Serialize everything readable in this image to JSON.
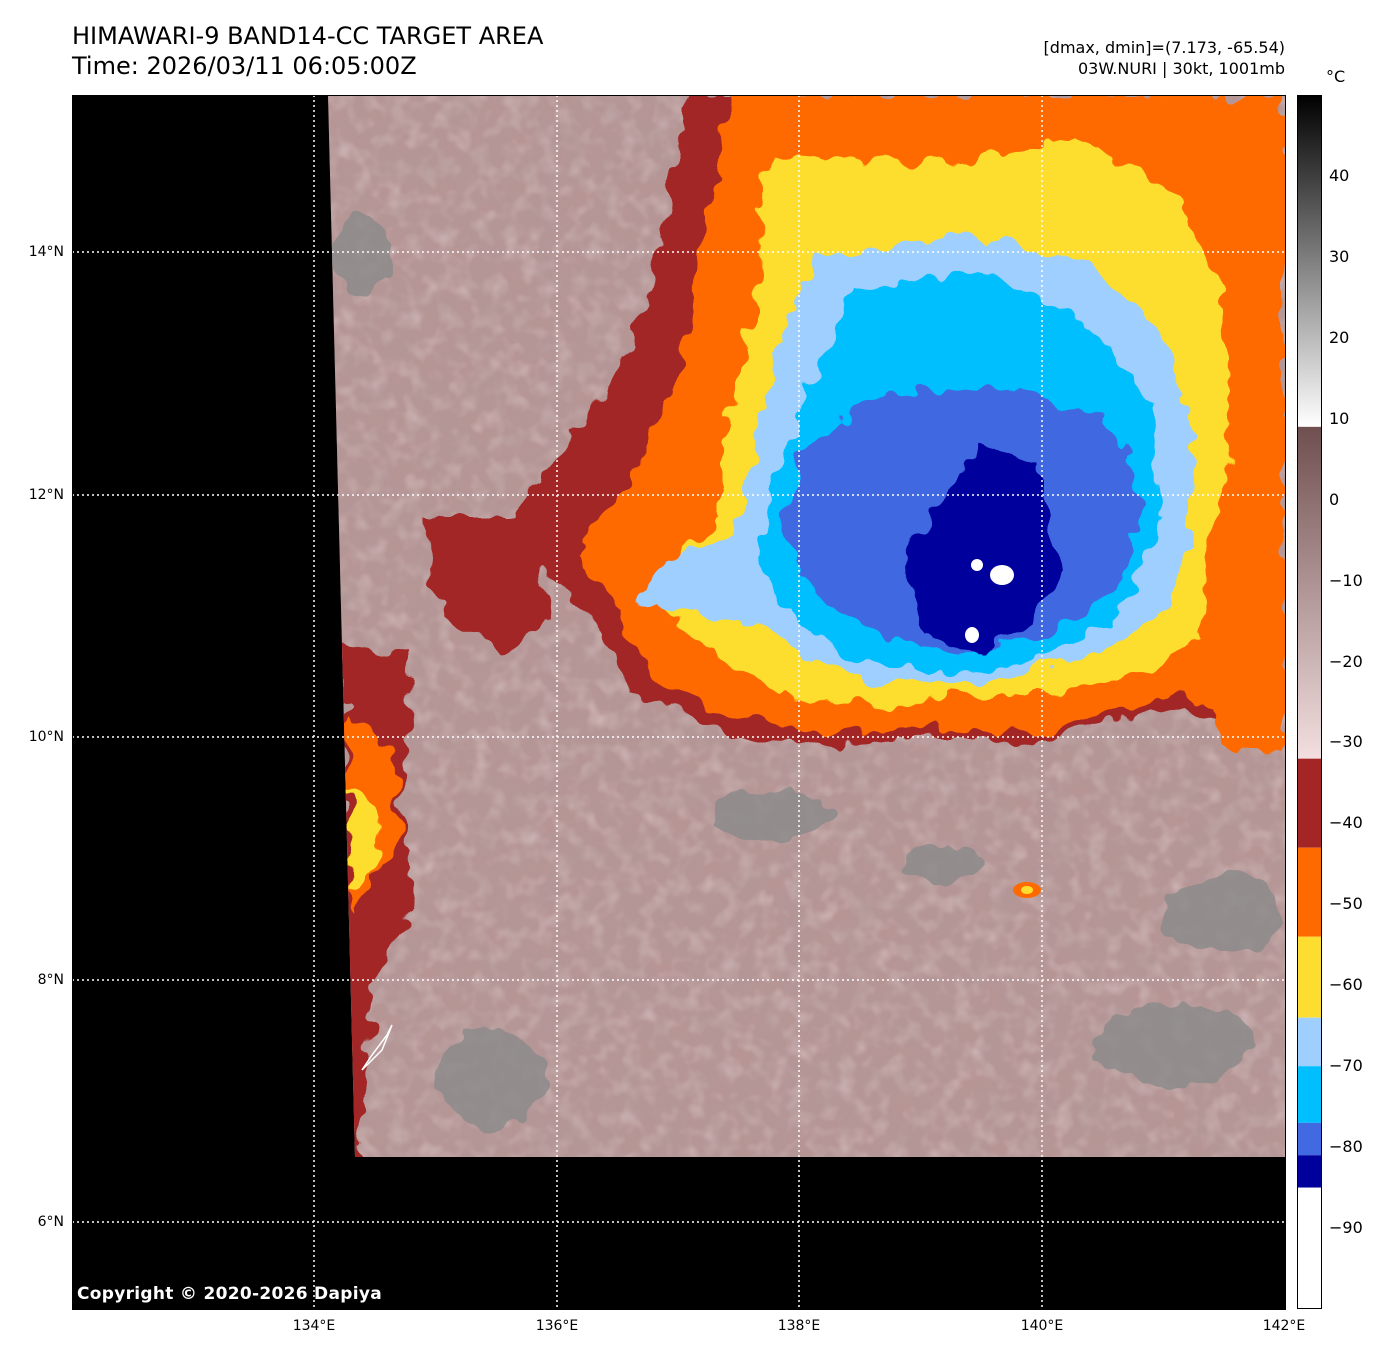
{
  "header": {
    "title_line1": "HIMAWARI-9 BAND14-CC TARGET AREA",
    "title_line2": "Time: 2026/03/11 06:05:00Z",
    "range_text": "[dmax, dmin]=(7.173, -65.54)",
    "storm_text": "03W.NURI | 30kt, 1001mb"
  },
  "map": {
    "lat_range": [
      5.3,
      15.3
    ],
    "lon_range": [
      132.0,
      142.0
    ],
    "lat_ticks": [
      "14°N",
      "12°N",
      "10°N",
      "8°N",
      "6°N"
    ],
    "lon_ticks": [
      "134°E",
      "136°E",
      "138°E",
      "140°E",
      "142°E"
    ],
    "gridlines": true,
    "copyright": "Copyright © 2020-2026 Dapiya"
  },
  "colorbar": {
    "unit": "°C",
    "range": [
      -100,
      50
    ],
    "tick_labels": [
      "40",
      "30",
      "20",
      "10",
      "0",
      "−10",
      "−20",
      "−30",
      "−40",
      "−50",
      "−60",
      "−70",
      "−80",
      "−90"
    ],
    "tick_values": [
      40,
      30,
      20,
      10,
      0,
      -10,
      -20,
      -30,
      -40,
      -50,
      -60,
      -70,
      -80,
      -90
    ],
    "bands": [
      {
        "from": 9,
        "to": 50,
        "type": "gradient",
        "colors": [
          "#ffffff",
          "#000000"
        ]
      },
      {
        "from": -32,
        "to": 9,
        "type": "gradient",
        "colors": [
          "#f3dfe0",
          "#6f4f4f"
        ]
      },
      {
        "from": -43,
        "to": -32,
        "color": "#a32525"
      },
      {
        "from": -54,
        "to": -43,
        "color": "#ff6a00"
      },
      {
        "from": -64,
        "to": -54,
        "color": "#fddd2f"
      },
      {
        "from": -70,
        "to": -64,
        "color": "#9ecfff"
      },
      {
        "from": -77,
        "to": -70,
        "color": "#00bfff"
      },
      {
        "from": -81,
        "to": -77,
        "color": "#4169e1"
      },
      {
        "from": -85,
        "to": -81,
        "color": "#00009c"
      },
      {
        "from": -100,
        "to": -85,
        "color": "#ffffff"
      }
    ]
  }
}
